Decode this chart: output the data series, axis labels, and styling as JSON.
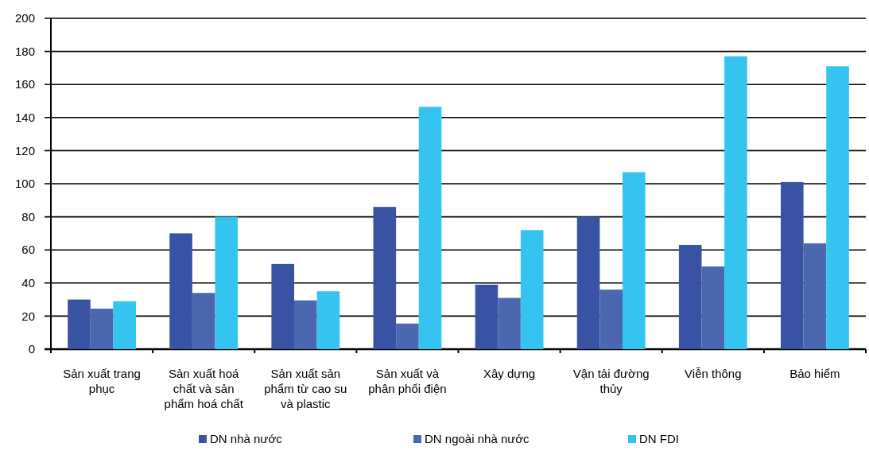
{
  "chart_data": {
    "type": "bar",
    "categories": [
      "Sản xuất trang phục",
      "Sản xuất hoá chất và sản phẩm hoá chất",
      "Sản xuất sản phẩm từ cao su và plastic",
      "Sản xuất và phân phối điện",
      "Xây dựng",
      "Vận tải đường thủy",
      "Viễn thông",
      "Bảo hiểm"
    ],
    "series": [
      {
        "name": "DN nhà nước",
        "color": "#3953a4",
        "values": [
          30,
          70,
          51.5,
          86,
          39,
          80,
          63,
          101
        ]
      },
      {
        "name": "DN ngoài nhà nước",
        "color": "#4b67b0",
        "values": [
          24.5,
          34,
          29.5,
          15.5,
          31,
          36,
          50,
          64
        ]
      },
      {
        "name": "DN FDI",
        "color": "#35c4f0",
        "values": [
          29,
          80,
          35,
          146.5,
          72,
          107,
          177,
          171
        ]
      }
    ],
    "ylim": [
      0,
      200
    ],
    "yticks": [
      0,
      20,
      40,
      60,
      80,
      100,
      120,
      140,
      160,
      180,
      200
    ],
    "grid": "y",
    "legend": "bottom"
  }
}
